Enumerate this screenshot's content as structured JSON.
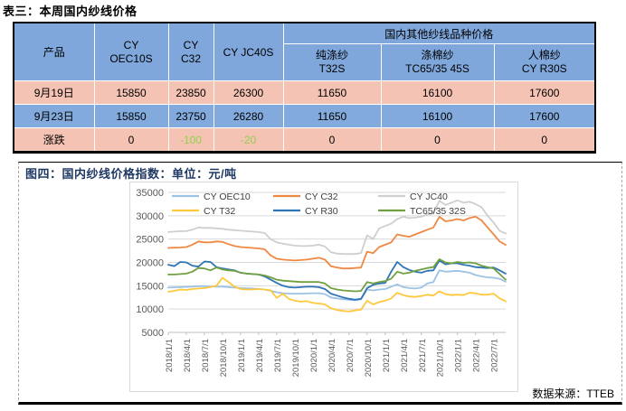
{
  "page": {
    "title": "表三：本周国内纱线价格"
  },
  "table": {
    "col_product": "产品",
    "group_header": "国内其他纱线品种价格",
    "columns": [
      {
        "line1": "CY",
        "line2": "OEC10S"
      },
      {
        "line1": "CY",
        "line2": "C32"
      },
      {
        "line1": "CY JC40S",
        "line2": ""
      },
      {
        "line1": "纯涤纱",
        "line2": "T32S"
      },
      {
        "line1": "涤棉纱",
        "line2": "TC65/35 45S"
      },
      {
        "line1": "人棉纱",
        "line2": "CY R30S"
      }
    ],
    "rows": [
      {
        "label": "9月19日",
        "values": [
          "15850",
          "23850",
          "26300",
          "11650",
          "16100",
          "17600"
        ]
      },
      {
        "label": "9月23日",
        "values": [
          "15850",
          "23750",
          "26280",
          "11650",
          "16100",
          "17600"
        ]
      },
      {
        "label": "涨跌",
        "values": [
          "0",
          "-100",
          "-20",
          "0",
          "0",
          "0"
        ]
      }
    ]
  },
  "figure": {
    "title": "图四：国内纱线价格指数：单位：元/吨",
    "source_note": "数据来源：TTEB"
  },
  "colors": {
    "header_blue": "#7FA7DB",
    "row_pink": "#F5C3B3",
    "row_blue": "#82AADC",
    "negative_green": "#92D050",
    "figure_title_navy": "#1F3864",
    "gridline_gray": "#D9D9D9",
    "axis_text_gray": "#595959"
  },
  "chart_data": {
    "type": "line",
    "title": "图四：国内纱线价格指数",
    "unit": "元/吨",
    "ylim": [
      5000,
      35000
    ],
    "ytick_step": 5000,
    "grid": true,
    "legend_position": "top-inside",
    "x_start": "2018/1/1",
    "x_interval": "monthly",
    "x_tick_every_months": 3,
    "x_tick_labels": [
      "2018/1/1",
      "2018/4/1",
      "2018/7/1",
      "2018/10/1",
      "2019/1/1",
      "2019/4/1",
      "2019/7/1",
      "2019/10/1",
      "2020/1/1",
      "2020/4/1",
      "2020/7/1",
      "2020/10/1",
      "2021/1/1",
      "2021/4/1",
      "2021/7/1",
      "2021/10/1",
      "2022/1/1",
      "2022/4/1",
      "2022/7/1"
    ],
    "series": [
      {
        "name": "CY OEC10",
        "color": "#9CC2E5",
        "values": [
          14600,
          14650,
          14700,
          14750,
          14800,
          14900,
          14900,
          14850,
          14800,
          14800,
          14700,
          14600,
          14500,
          14450,
          14400,
          14300,
          14200,
          13900,
          13600,
          13400,
          13300,
          13300,
          13300,
          13350,
          13400,
          13400,
          13200,
          12500,
          12300,
          12100,
          12000,
          11900,
          12100,
          14200,
          14000,
          14200,
          14300,
          14800,
          15300,
          14700,
          14500,
          14400,
          14600,
          15500,
          15800,
          18300,
          18000,
          18100,
          18200,
          18000,
          17800,
          17300,
          17000,
          16800,
          16700,
          16500,
          15850
        ]
      },
      {
        "name": "CY C32",
        "color": "#EF8843",
        "values": [
          23100,
          23150,
          23200,
          23300,
          23800,
          24500,
          24300,
          24300,
          24500,
          24400,
          23900,
          23500,
          23300,
          23200,
          23100,
          23000,
          22800,
          21500,
          20800,
          20600,
          20500,
          20400,
          20500,
          20600,
          20800,
          21000,
          20600,
          19200,
          18900,
          18700,
          18700,
          18800,
          18900,
          22300,
          22000,
          23300,
          23800,
          24300,
          26000,
          25700,
          25500,
          26000,
          26500,
          27000,
          27500,
          29800,
          28800,
          29000,
          29300,
          29000,
          29500,
          29800,
          29000,
          27500,
          26000,
          24500,
          23750
        ]
      },
      {
        "name": "CY JC40",
        "color": "#D0CECE",
        "values": [
          26500,
          26600,
          26700,
          26700,
          27000,
          27500,
          27400,
          27400,
          27300,
          27200,
          27000,
          26900,
          26800,
          26700,
          26600,
          26500,
          26300,
          25000,
          24300,
          24000,
          23800,
          23600,
          23500,
          23500,
          23600,
          23800,
          23400,
          22200,
          21900,
          21800,
          21800,
          21800,
          22000,
          25800,
          25000,
          27300,
          27800,
          28300,
          29300,
          29800,
          29500,
          29600,
          29800,
          30300,
          30500,
          33200,
          32300,
          32800,
          33300,
          32800,
          33000,
          32500,
          31800,
          30000,
          28500,
          26800,
          26200
        ]
      },
      {
        "name": "CY T32",
        "color": "#FFC83D",
        "values": [
          13700,
          13900,
          14200,
          14100,
          14300,
          14400,
          14500,
          14700,
          15000,
          16700,
          15800,
          14800,
          14300,
          14200,
          14200,
          14300,
          14200,
          14000,
          12400,
          13300,
          12200,
          11800,
          11600,
          11700,
          11300,
          11200,
          11000,
          10200,
          9800,
          9600,
          9500,
          9700,
          9900,
          11800,
          11000,
          11500,
          11800,
          12300,
          13500,
          13000,
          12700,
          12600,
          12800,
          13100,
          12900,
          13800,
          13200,
          13000,
          13100,
          13000,
          13500,
          13400,
          13100,
          13100,
          13300,
          12300,
          11650
        ]
      },
      {
        "name": "CY R30",
        "color": "#2E75B6",
        "values": [
          19500,
          19200,
          20100,
          20000,
          19300,
          19100,
          20200,
          20100,
          19000,
          18700,
          18500,
          18300,
          17800,
          17600,
          17500,
          17400,
          17000,
          16300,
          15600,
          15000,
          14700,
          14600,
          14700,
          14800,
          14800,
          14700,
          14300,
          13300,
          12900,
          12500,
          12200,
          12000,
          12200,
          14500,
          15200,
          15500,
          15600,
          18000,
          20100,
          19000,
          18400,
          18000,
          17800,
          18200,
          18300,
          20400,
          19600,
          19800,
          19800,
          19500,
          19300,
          19000,
          18900,
          18800,
          18900,
          18300,
          17600
        ]
      },
      {
        "name": "TC65/35 32S",
        "color": "#70A03F",
        "values": [
          17400,
          17400,
          17500,
          17600,
          18000,
          18800,
          18700,
          18300,
          18900,
          18500,
          18300,
          18200,
          17800,
          17600,
          17500,
          17400,
          17200,
          16800,
          16300,
          16100,
          16000,
          15900,
          15800,
          15800,
          15800,
          15800,
          15500,
          14500,
          14200,
          14000,
          13900,
          13800,
          13900,
          15800,
          15500,
          15800,
          16000,
          16500,
          18000,
          17600,
          17800,
          18200,
          18500,
          18800,
          19000,
          20700,
          20000,
          19800,
          20100,
          19900,
          20000,
          19800,
          19300,
          19000,
          18700,
          17500,
          16300
        ]
      }
    ]
  }
}
